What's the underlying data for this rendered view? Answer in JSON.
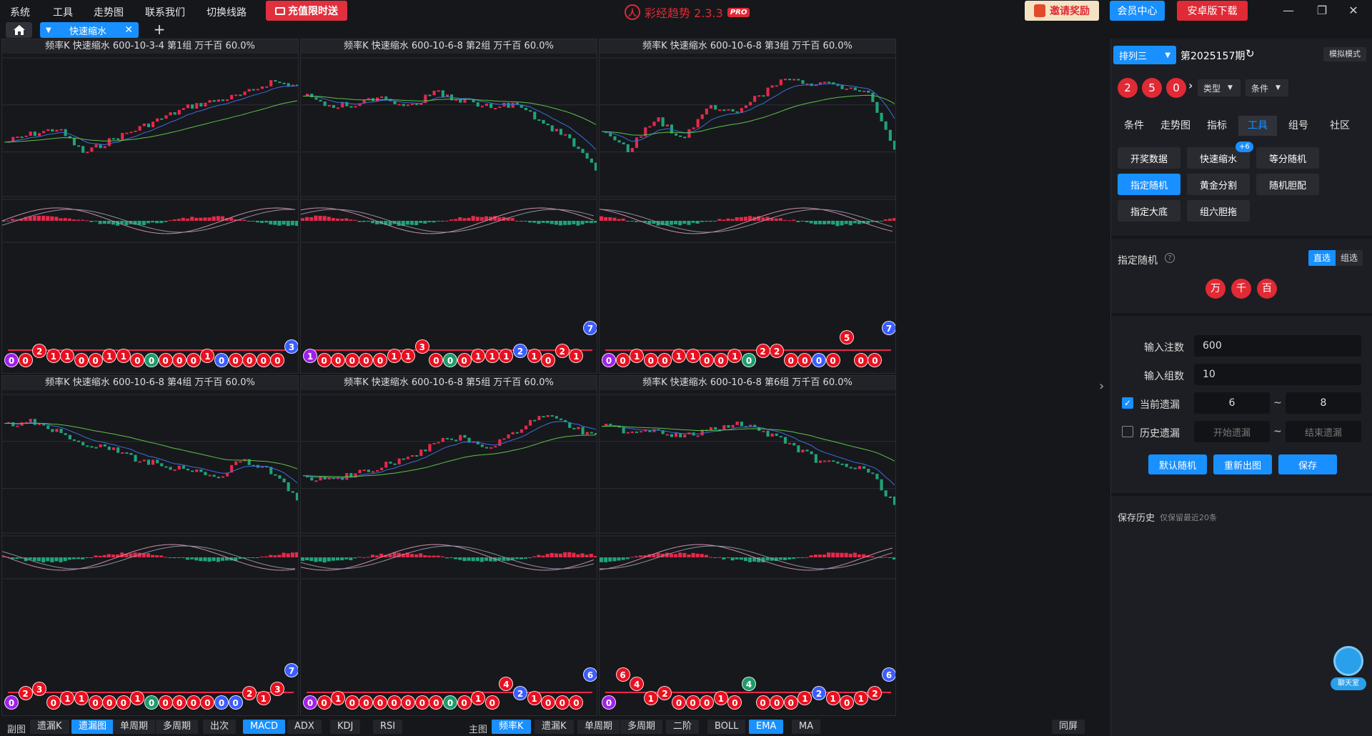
{
  "menu": [
    "系统",
    "工具",
    "走势图",
    "联系我们",
    "切换线路"
  ],
  "recharge_label": "充值限时送",
  "app_title": "彩经趋势 2.3.3",
  "app_badge": "PRO",
  "invite_label": "邀请奖励",
  "member_label": "会员中心",
  "android_label": "安卓版下载",
  "tab_label": "快速缩水",
  "panels": [
    {
      "title": "频率K  快速缩水  600-10-3-4 第1组  万千百  60.0%",
      "balls": [
        [
          0,
          "purple",
          0
        ],
        [
          1,
          "red",
          0
        ],
        [
          2,
          "red",
          2
        ],
        [
          3,
          "red",
          1
        ],
        [
          4,
          "red",
          1
        ],
        [
          5,
          "red",
          0
        ],
        [
          6,
          "red",
          0
        ],
        [
          7,
          "red",
          1
        ],
        [
          8,
          "red",
          1
        ],
        [
          9,
          "red",
          0
        ],
        [
          10,
          "green",
          0
        ],
        [
          11,
          "red",
          0
        ],
        [
          12,
          "red",
          0
        ],
        [
          13,
          "red",
          0
        ],
        [
          14,
          "red",
          1
        ],
        [
          15,
          "blue",
          0
        ],
        [
          16,
          "red",
          0
        ],
        [
          17,
          "red",
          0
        ],
        [
          18,
          "red",
          0
        ],
        [
          19,
          "red",
          0
        ],
        [
          20,
          "blue",
          3
        ]
      ]
    },
    {
      "title": "频率K  快速缩水  600-10-6-8 第2组  万千百  60.0%",
      "balls": [
        [
          0,
          "purple",
          1
        ],
        [
          1,
          "red",
          0
        ],
        [
          2,
          "red",
          0
        ],
        [
          3,
          "red",
          0
        ],
        [
          4,
          "red",
          0
        ],
        [
          5,
          "red",
          0
        ],
        [
          6,
          "red",
          1
        ],
        [
          7,
          "red",
          1
        ],
        [
          8,
          "red",
          3
        ],
        [
          9,
          "red",
          0
        ],
        [
          10,
          "green",
          0
        ],
        [
          11,
          "red",
          0
        ],
        [
          12,
          "red",
          1
        ],
        [
          13,
          "red",
          1
        ],
        [
          14,
          "red",
          1
        ],
        [
          15,
          "blue",
          2
        ],
        [
          16,
          "red",
          1
        ],
        [
          17,
          "red",
          0
        ],
        [
          18,
          "red",
          2
        ],
        [
          19,
          "red",
          1
        ],
        [
          20,
          "blue",
          7
        ]
      ]
    },
    {
      "title": "频率K  快速缩水  600-10-6-8 第3组  万千百  60.0%",
      "balls": [
        [
          0,
          "purple",
          0
        ],
        [
          1,
          "red",
          0
        ],
        [
          2,
          "red",
          1
        ],
        [
          3,
          "red",
          0
        ],
        [
          4,
          "red",
          0
        ],
        [
          5,
          "red",
          1
        ],
        [
          6,
          "red",
          1
        ],
        [
          7,
          "red",
          0
        ],
        [
          8,
          "red",
          0
        ],
        [
          9,
          "red",
          1
        ],
        [
          10,
          "green",
          0
        ],
        [
          11,
          "red",
          2
        ],
        [
          12,
          "red",
          2
        ],
        [
          13,
          "red",
          0
        ],
        [
          14,
          "red",
          0
        ],
        [
          15,
          "blue",
          0
        ],
        [
          16,
          "red",
          0
        ],
        [
          17,
          "red",
          5
        ],
        [
          18,
          "red",
          0
        ],
        [
          19,
          "red",
          0
        ],
        [
          20,
          "blue",
          7
        ]
      ]
    },
    {
      "title": "频率K  快速缩水  600-10-6-8 第4组  万千百  60.0%",
      "balls": [
        [
          0,
          "purple",
          0
        ],
        [
          1,
          "red",
          2
        ],
        [
          2,
          "red",
          3
        ],
        [
          3,
          "red",
          0
        ],
        [
          4,
          "red",
          1
        ],
        [
          5,
          "red",
          1
        ],
        [
          6,
          "red",
          0
        ],
        [
          7,
          "red",
          0
        ],
        [
          8,
          "red",
          0
        ],
        [
          9,
          "red",
          1
        ],
        [
          10,
          "green",
          0
        ],
        [
          11,
          "red",
          0
        ],
        [
          12,
          "red",
          0
        ],
        [
          13,
          "red",
          0
        ],
        [
          14,
          "red",
          0
        ],
        [
          15,
          "blue",
          0
        ],
        [
          16,
          "blue",
          0
        ],
        [
          17,
          "red",
          2
        ],
        [
          18,
          "red",
          1
        ],
        [
          19,
          "red",
          3
        ],
        [
          20,
          "blue",
          7
        ]
      ]
    },
    {
      "title": "频率K  快速缩水  600-10-6-8 第5组  万千百  60.0%",
      "balls": [
        [
          0,
          "purple",
          0
        ],
        [
          1,
          "red",
          0
        ],
        [
          2,
          "red",
          1
        ],
        [
          3,
          "red",
          0
        ],
        [
          4,
          "red",
          0
        ],
        [
          5,
          "red",
          0
        ],
        [
          6,
          "red",
          0
        ],
        [
          7,
          "red",
          0
        ],
        [
          8,
          "red",
          0
        ],
        [
          9,
          "red",
          0
        ],
        [
          10,
          "green",
          0
        ],
        [
          11,
          "red",
          0
        ],
        [
          12,
          "red",
          1
        ],
        [
          13,
          "red",
          0
        ],
        [
          14,
          "red",
          4
        ],
        [
          15,
          "blue",
          2
        ],
        [
          16,
          "red",
          1
        ],
        [
          17,
          "red",
          0
        ],
        [
          18,
          "red",
          0
        ],
        [
          19,
          "red",
          0
        ],
        [
          20,
          "blue",
          6
        ]
      ]
    },
    {
      "title": "频率K  快速缩水  600-10-6-8 第6组  万千百  60.0%",
      "balls": [
        [
          0,
          "purple",
          0
        ],
        [
          1,
          "red",
          6
        ],
        [
          2,
          "red",
          4
        ],
        [
          3,
          "red",
          1
        ],
        [
          4,
          "red",
          2
        ],
        [
          5,
          "red",
          0
        ],
        [
          6,
          "red",
          0
        ],
        [
          7,
          "red",
          0
        ],
        [
          8,
          "red",
          1
        ],
        [
          9,
          "red",
          0
        ],
        [
          10,
          "green",
          4
        ],
        [
          11,
          "red",
          0
        ],
        [
          12,
          "red",
          0
        ],
        [
          13,
          "red",
          0
        ],
        [
          14,
          "red",
          1
        ],
        [
          15,
          "blue",
          2
        ],
        [
          16,
          "red",
          1
        ],
        [
          17,
          "red",
          0
        ],
        [
          18,
          "red",
          1
        ],
        [
          19,
          "red",
          2
        ],
        [
          20,
          "blue",
          6
        ]
      ]
    }
  ],
  "bottom": {
    "sub_label": "副图",
    "sub_buttons": [
      {
        "label": "遗漏K",
        "on": false
      },
      {
        "label": "遗漏图",
        "on": true
      },
      {
        "label": "单周期",
        "on": false
      },
      {
        "label": "多周期",
        "on": false
      },
      {
        "label": "出次",
        "on": false
      },
      {
        "label": "MACD",
        "on": true
      },
      {
        "label": "ADX",
        "on": false
      },
      {
        "label": "KDJ",
        "on": false
      },
      {
        "label": "RSI",
        "on": false
      }
    ],
    "main_label": "主图",
    "main_buttons": [
      {
        "label": "频率K",
        "on": true
      },
      {
        "label": "遗漏K",
        "on": false
      },
      {
        "label": "单周期",
        "on": false
      },
      {
        "label": "多周期",
        "on": false
      },
      {
        "label": "二阶",
        "on": false
      },
      {
        "label": "BOLL",
        "on": false
      },
      {
        "label": "EMA",
        "on": true
      },
      {
        "label": "MA",
        "on": false
      }
    ],
    "sync_label": "同屏"
  },
  "sidebar": {
    "lottery": "排列三",
    "period": "第2025157期",
    "sim_mode": "模拟模式",
    "numbers": [
      "2",
      "5",
      "0"
    ],
    "type_label": "类型",
    "cond_label": "条件",
    "tabs": [
      "条件",
      "走势图",
      "指标",
      "工具",
      "组号",
      "社区"
    ],
    "active_tab": "工具",
    "tools": [
      "开奖数据",
      "快速缩水",
      "等分随机",
      "指定随机",
      "黄金分割",
      "随机胆配",
      "指定大底",
      "组六胆拖"
    ],
    "tool_badge": "+6",
    "section_title": "指定随机",
    "help_icon": "?",
    "mode_direct": "直选",
    "mode_group": "组选",
    "positions": [
      "万",
      "千",
      "百"
    ],
    "bets_label": "输入注数",
    "bets_value": "600",
    "groups_label": "输入组数",
    "groups_value": "10",
    "cur_miss_label": "当前遗漏",
    "cur_miss_from": "6",
    "cur_miss_to": "8",
    "tilde": "~",
    "hist_miss_label": "历史遗漏",
    "hist_start_ph": "开始遗漏",
    "hist_end_ph": "结束遗漏",
    "btn_default": "默认随机",
    "btn_redraw": "重新出图",
    "btn_save": "保存",
    "history_title": "保存历史",
    "history_note": "仅保留最近20条",
    "chat_label": "聊天室"
  },
  "colors": {
    "accent": "#1890ff",
    "red": "#e02a35",
    "up": "#e8284a",
    "down": "#1fa37a"
  }
}
